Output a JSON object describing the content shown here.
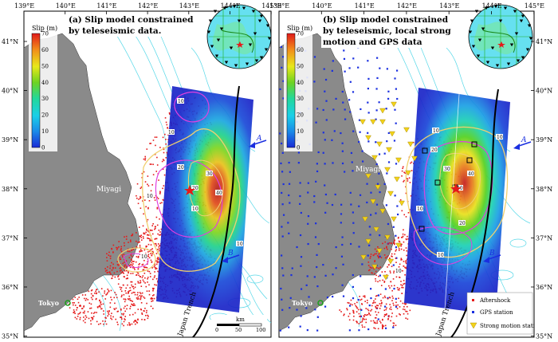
{
  "panels": [
    {
      "id": "a",
      "title_lines": [
        "(a) Slip model constrained",
        "by teleseismic data."
      ],
      "top_ticks": [
        "139°E",
        "140°E",
        "141°E",
        "142°E",
        "143°E",
        "144°E",
        "145°E"
      ],
      "left_ticks": [
        "41°N",
        "40°N",
        "39°N",
        "38°N",
        "37°N",
        "36°N",
        "35°N"
      ],
      "colorbar": {
        "label": "Slip (m)",
        "ticks": [
          "70",
          "60",
          "50",
          "40",
          "30",
          "20",
          "10",
          "0"
        ]
      },
      "city_labels": [
        "Miyagi",
        "Tokyo"
      ],
      "trench_label": "Japan Trench",
      "arrow_labels": [
        "A",
        "B"
      ],
      "contour_labels": [
        "10",
        "10",
        "10",
        "10",
        "10",
        "20",
        "20",
        "30",
        "40",
        "10"
      ],
      "scale_bar": {
        "unit": "km",
        "ticks": [
          "0",
          "50",
          "100"
        ]
      }
    },
    {
      "id": "b",
      "title_lines": [
        "(b) Slip model constrained",
        "by teleseismic, local strong",
        "motion  and GPS data"
      ],
      "top_ticks": [
        "139°E",
        "140°E",
        "141°E",
        "142°E",
        "143°E",
        "144°E",
        "145°E"
      ],
      "right_ticks": [
        "41°N",
        "40°N",
        "39°N",
        "38°N",
        "37°N",
        "36°N",
        "35°N"
      ],
      "colorbar": {
        "label": "Slip (m)",
        "ticks": [
          "70",
          "60",
          "50",
          "40",
          "30",
          "20",
          "10",
          "0"
        ]
      },
      "city_labels": [
        "Miyagi",
        "Tokyo"
      ],
      "trench_label": "Japan Trench",
      "arrow_labels": [
        "A",
        "B"
      ],
      "contour_labels": [
        "10",
        "10",
        "10",
        "20",
        "20",
        "30",
        "40",
        "50",
        "10",
        "10"
      ],
      "legend": [
        "Aftershock",
        "GPS station",
        "Strong motion station"
      ]
    }
  ],
  "colors": {
    "ocean": "#ffffff",
    "bathymetry": "#58d8e8",
    "land": "#8a8a8a",
    "aftershock": "#e51a1a",
    "gps": "#1a2fe0",
    "strong_motion": "#f2d21a",
    "contour_outer": "#f0d070",
    "contour_inner": "#e040e0",
    "trench": "#000000"
  }
}
